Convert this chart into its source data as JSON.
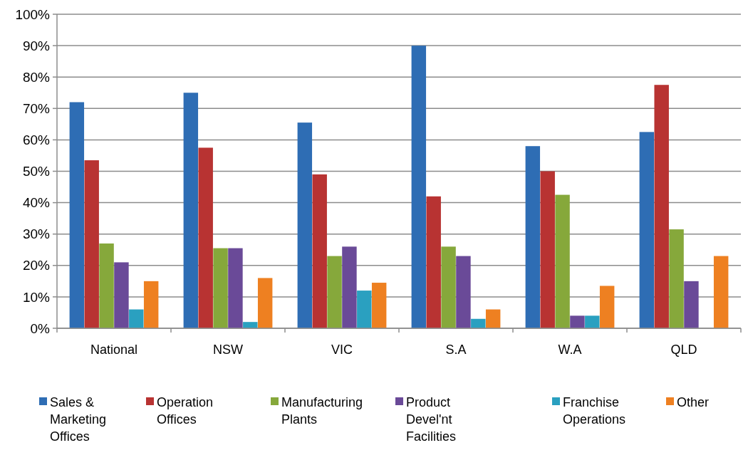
{
  "chart_data": {
    "type": "bar",
    "categories": [
      "National",
      "NSW",
      "VIC",
      "S.A",
      "W.A",
      "QLD"
    ],
    "series": [
      {
        "name": "Sales & Marketing Offices",
        "color": "#2e6db4",
        "values": [
          72,
          75,
          65.5,
          90,
          58,
          62.5
        ]
      },
      {
        "name": "Operation Offices",
        "color": "#b83332",
        "values": [
          53.5,
          57.5,
          49,
          42,
          50,
          77.5
        ]
      },
      {
        "name": "Manufacturing Plants",
        "color": "#86a83b",
        "values": [
          27,
          25.5,
          23,
          26,
          42.5,
          31.5
        ]
      },
      {
        "name": "Product Devel'nt Facilities",
        "color": "#6a4a98",
        "values": [
          21,
          25.5,
          26,
          23,
          4,
          15
        ]
      },
      {
        "name": "Franchise Operations",
        "color": "#2aa0c0",
        "values": [
          6,
          2,
          12,
          3,
          4,
          0
        ]
      },
      {
        "name": "Other",
        "color": "#ee8021",
        "values": [
          15,
          16,
          14.5,
          6,
          13.5,
          23
        ]
      }
    ],
    "ylim": [
      0,
      100
    ],
    "yticks": [
      {
        "value": 0,
        "label": "0%"
      },
      {
        "value": 10,
        "label": "10%"
      },
      {
        "value": 20,
        "label": "20%"
      },
      {
        "value": 30,
        "label": "30%"
      },
      {
        "value": 40,
        "label": "40%"
      },
      {
        "value": 50,
        "label": "50%"
      },
      {
        "value": 60,
        "label": "60%"
      },
      {
        "value": 70,
        "label": "70%"
      },
      {
        "value": 80,
        "label": "80%"
      },
      {
        "value": 90,
        "label": "90%"
      },
      {
        "value": 100,
        "label": "100%"
      }
    ],
    "grid": "y",
    "legend": "bottom"
  }
}
